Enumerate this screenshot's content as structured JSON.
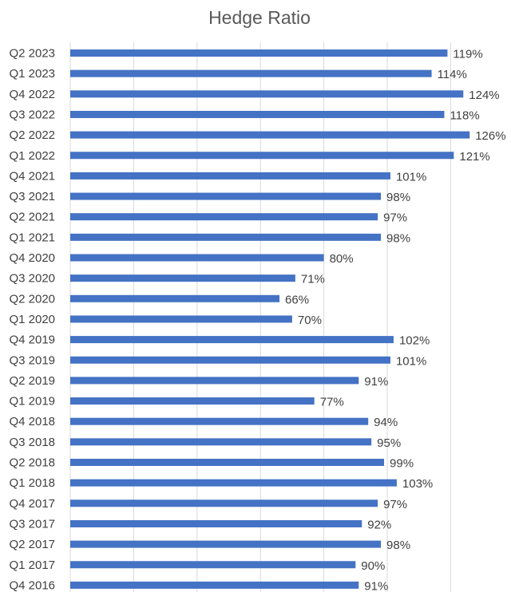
{
  "chart_data": {
    "type": "bar",
    "orientation": "horizontal",
    "title": "Hedge Ratio",
    "xlabel": "",
    "ylabel": "",
    "xlim": [
      0,
      130
    ],
    "grid": true,
    "legend": "none",
    "bar_color": "#4472c4",
    "categories": [
      "Q2 2023",
      "Q1 2023",
      "Q4 2022",
      "Q3 2022",
      "Q2 2022",
      "Q1 2022",
      "Q4 2021",
      "Q3 2021",
      "Q2 2021",
      "Q1 2021",
      "Q4 2020",
      "Q3 2020",
      "Q2 2020",
      "Q1 2020",
      "Q4 2019",
      "Q3 2019",
      "Q2 2019",
      "Q1 2019",
      "Q4 2018",
      "Q3 2018",
      "Q2 2018",
      "Q1 2018",
      "Q4 2017",
      "Q3 2017",
      "Q2 2017",
      "Q1 2017",
      "Q4 2016"
    ],
    "values": [
      119,
      114,
      124,
      118,
      126,
      121,
      101,
      98,
      97,
      98,
      80,
      71,
      66,
      70,
      102,
      101,
      91,
      77,
      94,
      95,
      99,
      103,
      97,
      92,
      98,
      90,
      91
    ],
    "data_labels": [
      "119%",
      "114%",
      "124%",
      "118%",
      "126%",
      "121%",
      "101%",
      "98%",
      "97%",
      "98%",
      "80%",
      "71%",
      "66%",
      "70%",
      "102%",
      "101%",
      "91%",
      "77%",
      "94%",
      "95%",
      "99%",
      "103%",
      "97%",
      "92%",
      "98%",
      "90%",
      "91%"
    ]
  }
}
